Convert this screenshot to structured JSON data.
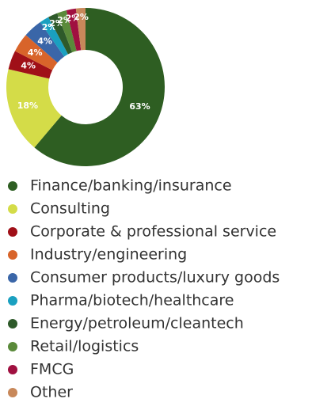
{
  "chart_data": {
    "type": "donut",
    "categories": [
      "Finance/banking/insurance",
      "Consulting",
      "Corporate & professional service",
      "Industry/engineering",
      "Consumer products/luxury goods",
      "Pharma/biotech/healthcare",
      "Energy/petroleum/cleantech",
      "Retail/logistics",
      "FMCG",
      "Other"
    ],
    "values": [
      63,
      18,
      4,
      4,
      4,
      2,
      2,
      2,
      2,
      2
    ],
    "value_labels": [
      "63%",
      "18%",
      "4%",
      "4%",
      "4%",
      "2%",
      "2%",
      "2%",
      "2%",
      "2%"
    ],
    "colors": [
      "#2e5e22",
      "#d4dc48",
      "#a01018",
      "#d8642a",
      "#3a66a8",
      "#1aa0c0",
      "#2e5a2a",
      "#5a8a3a",
      "#a01040",
      "#c8885a"
    ]
  }
}
